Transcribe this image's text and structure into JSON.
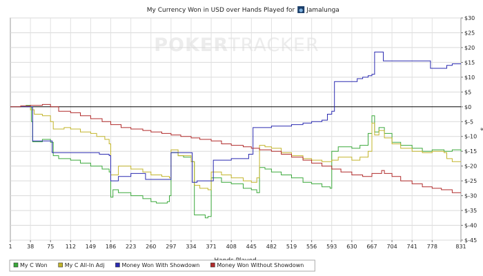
{
  "chart_data": {
    "type": "line",
    "title_prefix": "My Currency Won in USD over Hands Played for",
    "player": "Jamalunga",
    "watermark": {
      "left": "POKER",
      "right": "TRACKER"
    },
    "xlabel": "Hands Played",
    "ylabel": "$",
    "xlim": [
      1,
      831
    ],
    "ylim": [
      -45,
      30
    ],
    "x_ticks": [
      1,
      38,
      75,
      112,
      149,
      186,
      223,
      260,
      297,
      334,
      371,
      408,
      445,
      482,
      519,
      556,
      593,
      630,
      667,
      704,
      741,
      778,
      831
    ],
    "y_ticks": [
      {
        "v": 30,
        "label": "$30"
      },
      {
        "v": 25,
        "label": "$25"
      },
      {
        "v": 20,
        "label": "$20"
      },
      {
        "v": 15,
        "label": "$15"
      },
      {
        "v": 10,
        "label": "$10"
      },
      {
        "v": 5,
        "label": "$5"
      },
      {
        "v": 0,
        "label": "$0"
      },
      {
        "v": -5,
        "label": "$-5"
      },
      {
        "v": -10,
        "label": "$-10"
      },
      {
        "v": -15,
        "label": "$-15"
      },
      {
        "v": -20,
        "label": "$-20"
      },
      {
        "v": -25,
        "label": "$-25"
      },
      {
        "v": -30,
        "label": "$-30"
      },
      {
        "v": -35,
        "label": "$-35"
      },
      {
        "v": -40,
        "label": "$-40"
      },
      {
        "v": -45,
        "label": "$-45"
      }
    ],
    "grid": true,
    "legend_position": "bottom",
    "series": [
      {
        "name": "My C Won",
        "color": "#3aa83a",
        "points": [
          [
            1,
            0
          ],
          [
            20,
            0
          ],
          [
            30,
            0.5
          ],
          [
            38,
            0
          ],
          [
            40,
            -5
          ],
          [
            42,
            -11.8
          ],
          [
            60,
            -11
          ],
          [
            75,
            -12
          ],
          [
            80,
            -16.5
          ],
          [
            90,
            -17.5
          ],
          [
            112,
            -18
          ],
          [
            130,
            -19
          ],
          [
            149,
            -20
          ],
          [
            170,
            -21
          ],
          [
            183,
            -22
          ],
          [
            186,
            -30.5
          ],
          [
            190,
            -28
          ],
          [
            200,
            -29
          ],
          [
            223,
            -30
          ],
          [
            245,
            -31
          ],
          [
            260,
            -32
          ],
          [
            270,
            -32.5
          ],
          [
            290,
            -32
          ],
          [
            294,
            -30
          ],
          [
            297,
            -15.5
          ],
          [
            310,
            -16.5
          ],
          [
            320,
            -17
          ],
          [
            334,
            -18.5
          ],
          [
            340,
            -36.5
          ],
          [
            360,
            -37.5
          ],
          [
            365,
            -37
          ],
          [
            371,
            -24
          ],
          [
            390,
            -25.5
          ],
          [
            408,
            -26
          ],
          [
            430,
            -27.5
          ],
          [
            445,
            -28
          ],
          [
            455,
            -29
          ],
          [
            460,
            -20.5
          ],
          [
            470,
            -21
          ],
          [
            482,
            -22
          ],
          [
            500,
            -23
          ],
          [
            519,
            -24
          ],
          [
            540,
            -25.5
          ],
          [
            556,
            -26
          ],
          [
            575,
            -27
          ],
          [
            590,
            -27.5
          ],
          [
            593,
            -15
          ],
          [
            605,
            -13.5
          ],
          [
            630,
            -14
          ],
          [
            645,
            -13
          ],
          [
            660,
            -9
          ],
          [
            667,
            -3
          ],
          [
            672,
            -8.5
          ],
          [
            680,
            -7
          ],
          [
            690,
            -9
          ],
          [
            704,
            -12
          ],
          [
            720,
            -13
          ],
          [
            741,
            -14
          ],
          [
            760,
            -15
          ],
          [
            778,
            -14.5
          ],
          [
            800,
            -15
          ],
          [
            815,
            -14.5
          ],
          [
            831,
            -15
          ]
        ]
      },
      {
        "name": "My C All-In Adj",
        "color": "#c2b42a",
        "points": [
          [
            1,
            0
          ],
          [
            20,
            0
          ],
          [
            30,
            0.3
          ],
          [
            38,
            -1
          ],
          [
            45,
            -2.5
          ],
          [
            60,
            -3
          ],
          [
            75,
            -5
          ],
          [
            80,
            -7.5
          ],
          [
            100,
            -7
          ],
          [
            112,
            -7.5
          ],
          [
            130,
            -8.5
          ],
          [
            149,
            -9
          ],
          [
            160,
            -10
          ],
          [
            175,
            -11
          ],
          [
            183,
            -12.5
          ],
          [
            186,
            -23
          ],
          [
            200,
            -20
          ],
          [
            223,
            -21
          ],
          [
            245,
            -22
          ],
          [
            260,
            -23
          ],
          [
            280,
            -23.5
          ],
          [
            294,
            -24
          ],
          [
            297,
            -14.5
          ],
          [
            310,
            -16.5
          ],
          [
            334,
            -18.5
          ],
          [
            340,
            -26.5
          ],
          [
            350,
            -27.5
          ],
          [
            365,
            -28
          ],
          [
            371,
            -22
          ],
          [
            390,
            -23
          ],
          [
            408,
            -24
          ],
          [
            430,
            -25
          ],
          [
            445,
            -25.5
          ],
          [
            455,
            -24
          ],
          [
            460,
            -13
          ],
          [
            470,
            -13.5
          ],
          [
            482,
            -14
          ],
          [
            500,
            -15.5
          ],
          [
            519,
            -16.5
          ],
          [
            540,
            -17.5
          ],
          [
            556,
            -18
          ],
          [
            575,
            -18.5
          ],
          [
            593,
            -18
          ],
          [
            605,
            -17
          ],
          [
            630,
            -18
          ],
          [
            645,
            -17
          ],
          [
            660,
            -15
          ],
          [
            667,
            -5.5
          ],
          [
            672,
            -9.5
          ],
          [
            680,
            -8
          ],
          [
            690,
            -10.5
          ],
          [
            704,
            -12.5
          ],
          [
            720,
            -14
          ],
          [
            741,
            -15
          ],
          [
            760,
            -15.5
          ],
          [
            778,
            -15
          ],
          [
            800,
            -15.5
          ],
          [
            805,
            -17.5
          ],
          [
            815,
            -18.5
          ],
          [
            831,
            -18.5
          ]
        ]
      },
      {
        "name": "Money Won With Showdown",
        "color": "#2a2ab0",
        "points": [
          [
            1,
            0
          ],
          [
            38,
            0
          ],
          [
            42,
            -11.5
          ],
          [
            60,
            -11.5
          ],
          [
            75,
            -11.5
          ],
          [
            78,
            -15.5
          ],
          [
            112,
            -15.5
          ],
          [
            149,
            -15.5
          ],
          [
            165,
            -16
          ],
          [
            183,
            -16.5
          ],
          [
            186,
            -25
          ],
          [
            200,
            -23.5
          ],
          [
            223,
            -22.5
          ],
          [
            245,
            -22.5
          ],
          [
            250,
            -24.5
          ],
          [
            270,
            -24.5
          ],
          [
            294,
            -24.5
          ],
          [
            297,
            -15.5
          ],
          [
            310,
            -15.5
          ],
          [
            334,
            -15.5
          ],
          [
            336,
            -25.5
          ],
          [
            345,
            -25
          ],
          [
            371,
            -25
          ],
          [
            375,
            -18
          ],
          [
            408,
            -17.5
          ],
          [
            430,
            -17.5
          ],
          [
            440,
            -16
          ],
          [
            445,
            -16
          ],
          [
            448,
            -7
          ],
          [
            460,
            -7
          ],
          [
            482,
            -6.5
          ],
          [
            519,
            -6
          ],
          [
            540,
            -5.5
          ],
          [
            556,
            -5
          ],
          [
            575,
            -4.5
          ],
          [
            585,
            -2.5
          ],
          [
            593,
            -1.5
          ],
          [
            598,
            8.5
          ],
          [
            630,
            8.5
          ],
          [
            640,
            9.5
          ],
          [
            650,
            10
          ],
          [
            660,
            10.5
          ],
          [
            667,
            11
          ],
          [
            672,
            18.5
          ],
          [
            685,
            18.5
          ],
          [
            688,
            15.5
          ],
          [
            704,
            15.5
          ],
          [
            741,
            15.5
          ],
          [
            770,
            15.5
          ],
          [
            775,
            13
          ],
          [
            795,
            13
          ],
          [
            805,
            14
          ],
          [
            815,
            14.5
          ],
          [
            831,
            14.5
          ]
        ]
      },
      {
        "name": "Money Won Without Showdown",
        "color": "#b02a2a",
        "points": [
          [
            1,
            0
          ],
          [
            20,
            0.3
          ],
          [
            38,
            0.5
          ],
          [
            60,
            0.8
          ],
          [
            75,
            0
          ],
          [
            90,
            -1.5
          ],
          [
            112,
            -2
          ],
          [
            130,
            -3
          ],
          [
            149,
            -4
          ],
          [
            170,
            -5
          ],
          [
            186,
            -6
          ],
          [
            205,
            -7
          ],
          [
            223,
            -7.5
          ],
          [
            245,
            -8
          ],
          [
            260,
            -8.5
          ],
          [
            280,
            -9
          ],
          [
            297,
            -9.5
          ],
          [
            315,
            -10
          ],
          [
            334,
            -10.5
          ],
          [
            350,
            -11
          ],
          [
            371,
            -11.5
          ],
          [
            390,
            -12.5
          ],
          [
            408,
            -13
          ],
          [
            430,
            -13.5
          ],
          [
            445,
            -14
          ],
          [
            460,
            -14.5
          ],
          [
            482,
            -15
          ],
          [
            500,
            -16
          ],
          [
            519,
            -17
          ],
          [
            540,
            -18
          ],
          [
            556,
            -19
          ],
          [
            575,
            -20
          ],
          [
            593,
            -21
          ],
          [
            610,
            -22
          ],
          [
            630,
            -23
          ],
          [
            650,
            -23.5
          ],
          [
            667,
            -22.5
          ],
          [
            685,
            -21.5
          ],
          [
            690,
            -22.5
          ],
          [
            704,
            -23.5
          ],
          [
            720,
            -25
          ],
          [
            741,
            -26
          ],
          [
            760,
            -27
          ],
          [
            778,
            -27.5
          ],
          [
            795,
            -28
          ],
          [
            815,
            -29
          ],
          [
            831,
            -29
          ]
        ]
      }
    ]
  }
}
